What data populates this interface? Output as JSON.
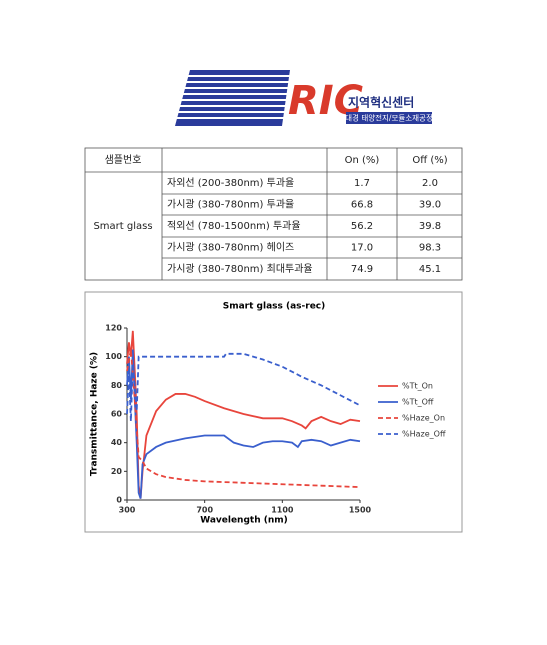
{
  "logo": {
    "mark": "RIC",
    "name": "지역혁신센터",
    "subtitle": "대경 태양전지/모듈소재공정"
  },
  "table": {
    "header": {
      "sample": "샘플번호",
      "on": "On (%)",
      "off": "Off (%)"
    },
    "sample_name": "Smart glass",
    "rows": [
      {
        "property": "자외선 (200-380nm) 투과율",
        "on": "1.7",
        "off": "2.0"
      },
      {
        "property": "가시광 (380-780nm) 투과율",
        "on": "66.8",
        "off": "39.0"
      },
      {
        "property": "적외선 (780-1500nm) 투과율",
        "on": "56.2",
        "off": "39.8"
      },
      {
        "property": "가시광 (380-780nm) 헤이즈",
        "on": "17.0",
        "off": "98.3"
      },
      {
        "property": "가시광 (380-780nm) 최대투과율",
        "on": "74.9",
        "off": "45.1"
      }
    ]
  },
  "chart": {
    "type": "line",
    "title": "Smart glass (as-rec)",
    "x_label": "Wavelength (nm)",
    "y_label": "Transmittance, Haze (%)",
    "xlim": [
      300,
      1500
    ],
    "xticks": [
      300,
      700,
      1100,
      1500
    ],
    "ylim": [
      0,
      120
    ],
    "yticks": [
      0,
      20,
      40,
      60,
      80,
      100,
      120
    ],
    "series": [
      {
        "name": "%Tt_On",
        "color": "#e8453c",
        "dash": false,
        "x": [
          300,
          310,
          320,
          330,
          340,
          350,
          360,
          370,
          380,
          400,
          450,
          500,
          550,
          600,
          650,
          700,
          800,
          900,
          1000,
          1100,
          1150,
          1200,
          1220,
          1250,
          1300,
          1350,
          1400,
          1450,
          1500
        ],
        "values": [
          95,
          110,
          100,
          118,
          90,
          60,
          10,
          1,
          20,
          45,
          62,
          70,
          74,
          74,
          72,
          69,
          64,
          60,
          57,
          57,
          55,
          52,
          50,
          55,
          58,
          55,
          53,
          56,
          55
        ]
      },
      {
        "name": "%Tt_Off",
        "color": "#3a5fcd",
        "dash": false,
        "x": [
          300,
          310,
          320,
          330,
          340,
          350,
          360,
          370,
          380,
          400,
          450,
          500,
          600,
          700,
          800,
          850,
          900,
          950,
          1000,
          1050,
          1100,
          1150,
          1180,
          1200,
          1250,
          1300,
          1350,
          1400,
          1450,
          1500
        ],
        "values": [
          80,
          100,
          70,
          105,
          70,
          40,
          5,
          1,
          25,
          32,
          37,
          40,
          43,
          45,
          45,
          40,
          38,
          37,
          40,
          41,
          41,
          40,
          37,
          41,
          42,
          41,
          38,
          40,
          42,
          41
        ]
      },
      {
        "name": "%Haze_On",
        "color": "#e8453c",
        "dash": true,
        "x": [
          300,
          320,
          340,
          360,
          380,
          400,
          450,
          500,
          600,
          700,
          900,
          1100,
          1300,
          1500
        ],
        "values": [
          90,
          105,
          70,
          30,
          27,
          22,
          18,
          16,
          14,
          13,
          12,
          11,
          10,
          9
        ]
      },
      {
        "name": "%Haze_Off",
        "color": "#3a5fcd",
        "dash": true,
        "x": [
          300,
          310,
          320,
          330,
          340,
          350,
          360,
          380,
          400,
          600,
          800,
          810,
          900,
          1000,
          1100,
          1200,
          1300,
          1400,
          1500
        ],
        "values": [
          60,
          90,
          55,
          95,
          80,
          62,
          100,
          100,
          100,
          100,
          100,
          102,
          102,
          98,
          93,
          86,
          80,
          73,
          66
        ]
      }
    ]
  }
}
